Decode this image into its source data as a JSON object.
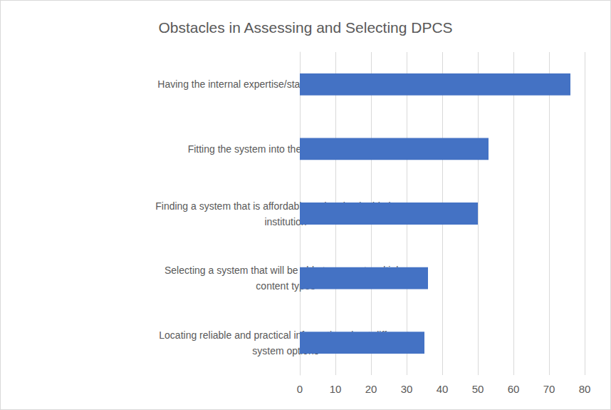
{
  "chart_data": {
    "type": "bar",
    "orientation": "horizontal",
    "title": "Obstacles in Assessing and Selecting DPCS",
    "categories": [
      "Having the internal expertise/staffing to leverage a system",
      "Fitting the system into the internal workflows",
      "Finding a system that is affordable and maintainable by an institution",
      "Selecting a system that will be able to support multiple content types",
      "Locating reliable and practical information about different system options"
    ],
    "values": [
      76,
      53,
      50,
      36,
      35
    ],
    "color": "#4472c4",
    "xlim": [
      0,
      80
    ],
    "xticks": [
      0,
      10,
      20,
      30,
      40,
      50,
      60,
      70,
      80
    ],
    "grid": true
  }
}
